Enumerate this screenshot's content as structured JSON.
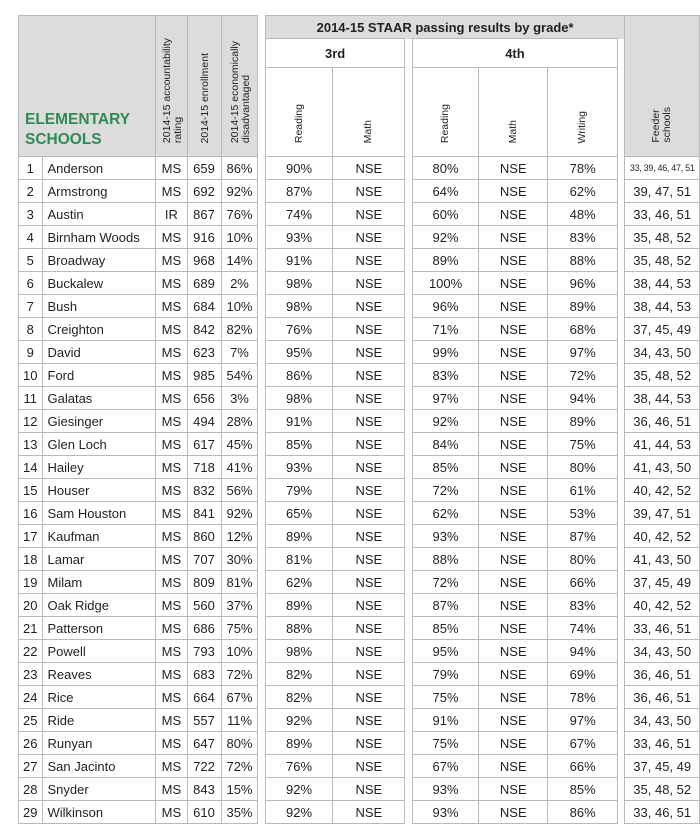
{
  "table": {
    "title_line1": "ELEMENTARY",
    "title_line2": "SCHOOLS",
    "col_rating": "2014-15 accountability rating",
    "col_rating_l1": "2014-15 accountability",
    "col_rating_l2": "rating",
    "col_enrollment": "2014-15 enrollment",
    "col_econ_l1": "2014-15 economically",
    "col_econ_l2": "disadvantaged",
    "staar_header": "2014-15 STAAR passing results by grade*",
    "grade3": "3rd",
    "grade4": "4th",
    "reading": "Reading",
    "math": "Math",
    "writing": "Writing",
    "feeder_l1": "Feeder",
    "feeder_l2": "schools",
    "rows": [
      {
        "n": "1",
        "school": "Anderson",
        "rating": "MS",
        "enroll": "659",
        "econ": "86%",
        "r3": "90%",
        "m3": "NSE",
        "r4": "80%",
        "m4": "NSE",
        "w4": "78%",
        "feeder": "33, 39, 46, 47, 51"
      },
      {
        "n": "2",
        "school": "Armstrong",
        "rating": "MS",
        "enroll": "692",
        "econ": "92%",
        "r3": "87%",
        "m3": "NSE",
        "r4": "64%",
        "m4": "NSE",
        "w4": "62%",
        "feeder": "39, 47, 51"
      },
      {
        "n": "3",
        "school": "Austin",
        "rating": "IR",
        "enroll": "867",
        "econ": "76%",
        "r3": "74%",
        "m3": "NSE",
        "r4": "60%",
        "m4": "NSE",
        "w4": "48%",
        "feeder": "33, 46, 51"
      },
      {
        "n": "4",
        "school": "Birnham Woods",
        "rating": "MS",
        "enroll": "916",
        "econ": "10%",
        "r3": "93%",
        "m3": "NSE",
        "r4": "92%",
        "m4": "NSE",
        "w4": "83%",
        "feeder": "35, 48, 52"
      },
      {
        "n": "5",
        "school": "Broadway",
        "rating": "MS",
        "enroll": "968",
        "econ": "14%",
        "r3": "91%",
        "m3": "NSE",
        "r4": "89%",
        "m4": "NSE",
        "w4": "88%",
        "feeder": "35, 48, 52"
      },
      {
        "n": "6",
        "school": "Buckalew",
        "rating": "MS",
        "enroll": "689",
        "econ": "2%",
        "r3": "98%",
        "m3": "NSE",
        "r4": "100%",
        "m4": "NSE",
        "w4": "96%",
        "feeder": "38, 44, 53"
      },
      {
        "n": "7",
        "school": "Bush",
        "rating": "MS",
        "enroll": "684",
        "econ": "10%",
        "r3": "98%",
        "m3": "NSE",
        "r4": "96%",
        "m4": "NSE",
        "w4": "89%",
        "feeder": "38, 44, 53"
      },
      {
        "n": "8",
        "school": "Creighton",
        "rating": "MS",
        "enroll": "842",
        "econ": "82%",
        "r3": "76%",
        "m3": "NSE",
        "r4": "71%",
        "m4": "NSE",
        "w4": "68%",
        "feeder": "37, 45, 49"
      },
      {
        "n": "9",
        "school": "David",
        "rating": "MS",
        "enroll": "623",
        "econ": "7%",
        "r3": "95%",
        "m3": "NSE",
        "r4": "99%",
        "m4": "NSE",
        "w4": "97%",
        "feeder": "34, 43, 50"
      },
      {
        "n": "10",
        "school": "Ford",
        "rating": "MS",
        "enroll": "985",
        "econ": "54%",
        "r3": "86%",
        "m3": "NSE",
        "r4": "83%",
        "m4": "NSE",
        "w4": "72%",
        "feeder": "35, 48, 52"
      },
      {
        "n": "11",
        "school": "Galatas",
        "rating": "MS",
        "enroll": "656",
        "econ": "3%",
        "r3": "98%",
        "m3": "NSE",
        "r4": "97%",
        "m4": "NSE",
        "w4": "94%",
        "feeder": "38, 44, 53"
      },
      {
        "n": "12",
        "school": "Giesinger",
        "rating": "MS",
        "enroll": "494",
        "econ": "28%",
        "r3": "91%",
        "m3": "NSE",
        "r4": "92%",
        "m4": "NSE",
        "w4": "89%",
        "feeder": "36, 46, 51"
      },
      {
        "n": "13",
        "school": "Glen Loch",
        "rating": "MS",
        "enroll": "617",
        "econ": "45%",
        "r3": "85%",
        "m3": "NSE",
        "r4": "84%",
        "m4": "NSE",
        "w4": "75%",
        "feeder": "41, 44, 53"
      },
      {
        "n": "14",
        "school": "Hailey",
        "rating": "MS",
        "enroll": "718",
        "econ": "41%",
        "r3": "93%",
        "m3": "NSE",
        "r4": "85%",
        "m4": "NSE",
        "w4": "80%",
        "feeder": "41, 43, 50"
      },
      {
        "n": "15",
        "school": "Houser",
        "rating": "MS",
        "enroll": "832",
        "econ": "56%",
        "r3": "79%",
        "m3": "NSE",
        "r4": "72%",
        "m4": "NSE",
        "w4": "61%",
        "feeder": "40, 42, 52"
      },
      {
        "n": "16",
        "school": "Sam Houston",
        "rating": "MS",
        "enroll": "841",
        "econ": "92%",
        "r3": "65%",
        "m3": "NSE",
        "r4": "62%",
        "m4": "NSE",
        "w4": "53%",
        "feeder": "39, 47, 51"
      },
      {
        "n": "17",
        "school": "Kaufman",
        "rating": "MS",
        "enroll": "860",
        "econ": "12%",
        "r3": "89%",
        "m3": "NSE",
        "r4": "93%",
        "m4": "NSE",
        "w4": "87%",
        "feeder": "40, 42, 52"
      },
      {
        "n": "18",
        "school": "Lamar",
        "rating": "MS",
        "enroll": "707",
        "econ": "30%",
        "r3": "81%",
        "m3": "NSE",
        "r4": "88%",
        "m4": "NSE",
        "w4": "80%",
        "feeder": "41, 43, 50"
      },
      {
        "n": "19",
        "school": "Milam",
        "rating": "MS",
        "enroll": "809",
        "econ": "81%",
        "r3": "62%",
        "m3": "NSE",
        "r4": "72%",
        "m4": "NSE",
        "w4": "66%",
        "feeder": "37, 45, 49"
      },
      {
        "n": "20",
        "school": "Oak Ridge",
        "rating": "MS",
        "enroll": "560",
        "econ": "37%",
        "r3": "89%",
        "m3": "NSE",
        "r4": "87%",
        "m4": "NSE",
        "w4": "83%",
        "feeder": "40, 42, 52"
      },
      {
        "n": "21",
        "school": "Patterson",
        "rating": "MS",
        "enroll": "686",
        "econ": "75%",
        "r3": "88%",
        "m3": "NSE",
        "r4": "85%",
        "m4": "NSE",
        "w4": "74%",
        "feeder": "33, 46, 51"
      },
      {
        "n": "22",
        "school": "Powell",
        "rating": "MS",
        "enroll": "793",
        "econ": "10%",
        "r3": "98%",
        "m3": "NSE",
        "r4": "95%",
        "m4": "NSE",
        "w4": "94%",
        "feeder": "34, 43, 50"
      },
      {
        "n": "23",
        "school": "Reaves",
        "rating": "MS",
        "enroll": "683",
        "econ": "72%",
        "r3": "82%",
        "m3": "NSE",
        "r4": "79%",
        "m4": "NSE",
        "w4": "69%",
        "feeder": "36, 46, 51"
      },
      {
        "n": "24",
        "school": "Rice",
        "rating": "MS",
        "enroll": "664",
        "econ": "67%",
        "r3": "82%",
        "m3": "NSE",
        "r4": "75%",
        "m4": "NSE",
        "w4": "78%",
        "feeder": "36, 46, 51"
      },
      {
        "n": "25",
        "school": "Ride",
        "rating": "MS",
        "enroll": "557",
        "econ": "11%",
        "r3": "92%",
        "m3": "NSE",
        "r4": "91%",
        "m4": "NSE",
        "w4": "97%",
        "feeder": "34, 43, 50"
      },
      {
        "n": "26",
        "school": "Runyan",
        "rating": "MS",
        "enroll": "647",
        "econ": "80%",
        "r3": "89%",
        "m3": "NSE",
        "r4": "75%",
        "m4": "NSE",
        "w4": "67%",
        "feeder": "33, 46, 51"
      },
      {
        "n": "27",
        "school": "San Jacinto",
        "rating": "MS",
        "enroll": "722",
        "econ": "72%",
        "r3": "76%",
        "m3": "NSE",
        "r4": "67%",
        "m4": "NSE",
        "w4": "66%",
        "feeder": "37, 45, 49"
      },
      {
        "n": "28",
        "school": "Snyder",
        "rating": "MS",
        "enroll": "843",
        "econ": "15%",
        "r3": "92%",
        "m3": "NSE",
        "r4": "93%",
        "m4": "NSE",
        "w4": "85%",
        "feeder": "35, 48, 52"
      },
      {
        "n": "29",
        "school": "Wilkinson",
        "rating": "MS",
        "enroll": "610",
        "econ": "35%",
        "r3": "92%",
        "m3": "NSE",
        "r4": "93%",
        "m4": "NSE",
        "w4": "86%",
        "feeder": "33, 46, 51"
      }
    ]
  }
}
